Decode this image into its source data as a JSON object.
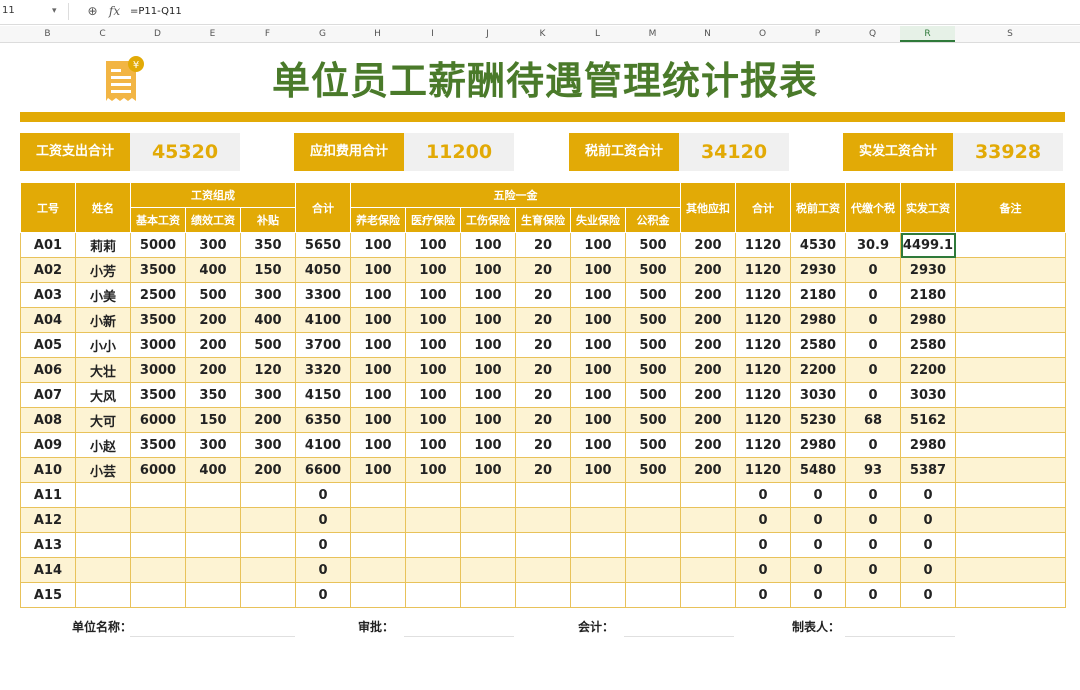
{
  "formula_bar": {
    "cell_ref": "11",
    "formula": "=P11-Q11"
  },
  "columns": [
    "B",
    "C",
    "D",
    "E",
    "F",
    "G",
    "H",
    "I",
    "J",
    "K",
    "L",
    "M",
    "N",
    "O",
    "P",
    "Q",
    "R",
    "S"
  ],
  "active_column": "R",
  "title": "单位员工薪酬待遇管理统计报表",
  "colors": {
    "accent": "#e2aa06",
    "title_green": "#4a7a2a",
    "band": "#fdf3d3"
  },
  "summary": [
    {
      "label": "工资支出合计",
      "value": "45320"
    },
    {
      "label": "应扣费用合计",
      "value": "11200"
    },
    {
      "label": "税前工资合计",
      "value": "34120"
    },
    {
      "label": "实发工资合计",
      "value": "33928"
    }
  ],
  "header": {
    "id": "工号",
    "name": "姓名",
    "salary_group": "工资组成",
    "base": "基本工资",
    "perf": "绩效工资",
    "allow": "补贴",
    "total": "合计",
    "insurance_group": "五险一金",
    "pension": "养老保险",
    "medical": "医疗保险",
    "injury": "工伤保险",
    "maternity": "生育保险",
    "unemployment": "失业保险",
    "fund": "公积金",
    "other": "其他应扣",
    "deduct_total": "合计",
    "pretax": "税前工资",
    "tax": "代缴个税",
    "net": "实发工资",
    "remark": "备注"
  },
  "rows": [
    [
      "A01",
      "莉莉",
      "5000",
      "300",
      "350",
      "5650",
      "100",
      "100",
      "100",
      "20",
      "100",
      "500",
      "200",
      "1120",
      "4530",
      "30.9",
      "4499.1",
      ""
    ],
    [
      "A02",
      "小芳",
      "3500",
      "400",
      "150",
      "4050",
      "100",
      "100",
      "100",
      "20",
      "100",
      "500",
      "200",
      "1120",
      "2930",
      "0",
      "2930",
      ""
    ],
    [
      "A03",
      "小美",
      "2500",
      "500",
      "300",
      "3300",
      "100",
      "100",
      "100",
      "20",
      "100",
      "500",
      "200",
      "1120",
      "2180",
      "0",
      "2180",
      ""
    ],
    [
      "A04",
      "小新",
      "3500",
      "200",
      "400",
      "4100",
      "100",
      "100",
      "100",
      "20",
      "100",
      "500",
      "200",
      "1120",
      "2980",
      "0",
      "2980",
      ""
    ],
    [
      "A05",
      "小小",
      "3000",
      "200",
      "500",
      "3700",
      "100",
      "100",
      "100",
      "20",
      "100",
      "500",
      "200",
      "1120",
      "2580",
      "0",
      "2580",
      ""
    ],
    [
      "A06",
      "大壮",
      "3000",
      "200",
      "120",
      "3320",
      "100",
      "100",
      "100",
      "20",
      "100",
      "500",
      "200",
      "1120",
      "2200",
      "0",
      "2200",
      ""
    ],
    [
      "A07",
      "大风",
      "3500",
      "350",
      "300",
      "4150",
      "100",
      "100",
      "100",
      "20",
      "100",
      "500",
      "200",
      "1120",
      "3030",
      "0",
      "3030",
      ""
    ],
    [
      "A08",
      "大可",
      "6000",
      "150",
      "200",
      "6350",
      "100",
      "100",
      "100",
      "20",
      "100",
      "500",
      "200",
      "1120",
      "5230",
      "68",
      "5162",
      ""
    ],
    [
      "A09",
      "小赵",
      "3500",
      "300",
      "300",
      "4100",
      "100",
      "100",
      "100",
      "20",
      "100",
      "500",
      "200",
      "1120",
      "2980",
      "0",
      "2980",
      ""
    ],
    [
      "A10",
      "小芸",
      "6000",
      "400",
      "200",
      "6600",
      "100",
      "100",
      "100",
      "20",
      "100",
      "500",
      "200",
      "1120",
      "5480",
      "93",
      "5387",
      ""
    ],
    [
      "A11",
      "",
      "",
      "",
      "",
      "0",
      "",
      "",
      "",
      "",
      "",
      "",
      "",
      "0",
      "0",
      "0",
      "0",
      ""
    ],
    [
      "A12",
      "",
      "",
      "",
      "",
      "0",
      "",
      "",
      "",
      "",
      "",
      "",
      "",
      "0",
      "0",
      "0",
      "0",
      ""
    ],
    [
      "A13",
      "",
      "",
      "",
      "",
      "0",
      "",
      "",
      "",
      "",
      "",
      "",
      "",
      "0",
      "0",
      "0",
      "0",
      ""
    ],
    [
      "A14",
      "",
      "",
      "",
      "",
      "0",
      "",
      "",
      "",
      "",
      "",
      "",
      "",
      "0",
      "0",
      "0",
      "0",
      ""
    ],
    [
      "A15",
      "",
      "",
      "",
      "",
      "0",
      "",
      "",
      "",
      "",
      "",
      "",
      "",
      "0",
      "0",
      "0",
      "0",
      ""
    ]
  ],
  "selected_cell": "0.16",
  "footer": [
    {
      "label": "单位名称："
    },
    {
      "label": "审批："
    },
    {
      "label": "会计："
    },
    {
      "label": "制表人："
    }
  ]
}
